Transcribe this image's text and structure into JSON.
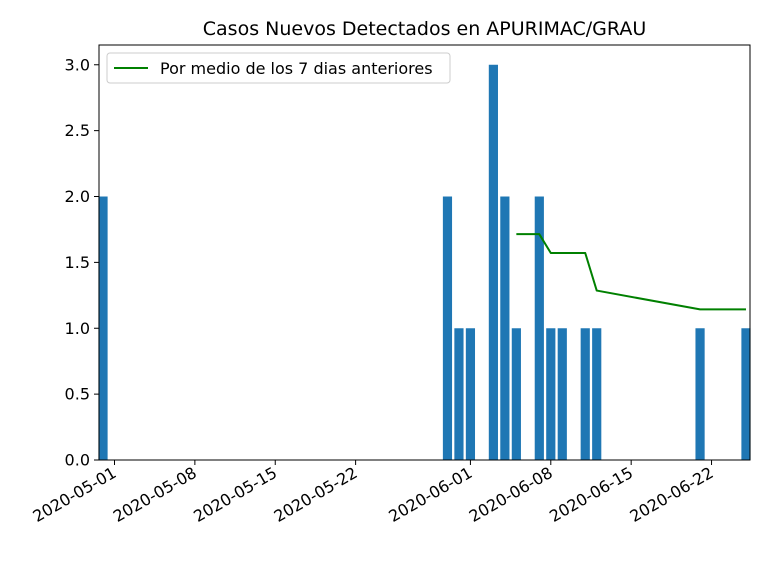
{
  "chart_data": {
    "type": "bar",
    "title": "Casos Nuevos Detectados en APURIMAC/GRAU",
    "xlabel": "",
    "ylabel": "",
    "ylim": [
      0,
      3.15
    ],
    "yticks": [
      "0.0",
      "0.5",
      "1.0",
      "1.5",
      "2.0",
      "2.5",
      "3.0"
    ],
    "xticks": [
      "2020-05-01",
      "2020-05-08",
      "2020-05-15",
      "2020-05-22",
      "2020-06-01",
      "2020-06-08",
      "2020-06-15",
      "2020-06-22"
    ],
    "bar_color": "#1f77b4",
    "line_color": "#008000",
    "legend_position": "top-left",
    "series": [
      {
        "kind": "bar",
        "dates": [
          "2020-04-30",
          "2020-05-30",
          "2020-05-31",
          "2020-06-01",
          "2020-06-03",
          "2020-06-04",
          "2020-06-05",
          "2020-06-07",
          "2020-06-08",
          "2020-06-09",
          "2020-06-11",
          "2020-06-12",
          "2020-06-21",
          "2020-06-25"
        ],
        "values": [
          2,
          2,
          1,
          1,
          3,
          2,
          1,
          2,
          1,
          1,
          1,
          1,
          1,
          1
        ]
      },
      {
        "kind": "line",
        "name": "Por medio de los 7 dias anteriores",
        "dates": [
          "2020-06-05",
          "2020-06-07",
          "2020-06-08",
          "2020-06-11",
          "2020-06-12",
          "2020-06-21",
          "2020-06-25"
        ],
        "values": [
          1.714,
          1.714,
          1.571,
          1.571,
          1.286,
          1.143,
          1.143
        ]
      }
    ]
  }
}
